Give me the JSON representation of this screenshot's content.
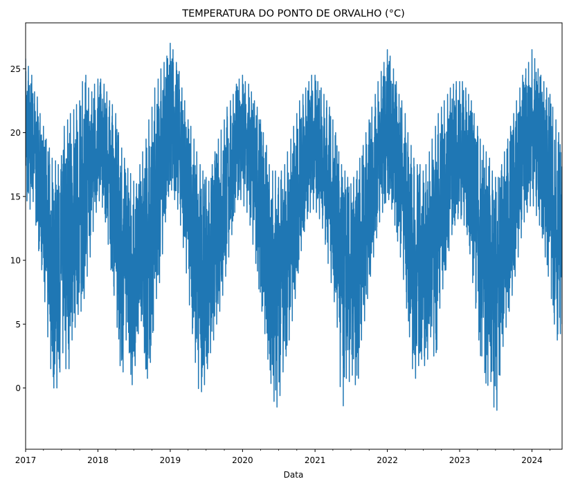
{
  "chart_data": {
    "type": "line",
    "title": "TEMPERATURA DO PONTO DE ORVALHO (°C)",
    "xlabel": "Data",
    "ylabel": "",
    "xlim": [
      "2017-01-01",
      "2024-06-01"
    ],
    "ylim": [
      -4.8,
      28.6
    ],
    "yticks": [
      0,
      5,
      10,
      15,
      20,
      25
    ],
    "xticks": [
      "2017",
      "2018",
      "2019",
      "2020",
      "2021",
      "2022",
      "2023",
      "2024"
    ],
    "grid": false,
    "legend": "none",
    "line_color": "#1f77b4",
    "series": [
      {
        "x": [
          "2017-01-01",
          "2017-01-15",
          "2017-02-01",
          "2017-02-15",
          "2017-03-01",
          "2017-03-15",
          "2017-04-01",
          "2017-04-15",
          "2017-05-01",
          "2017-05-15",
          "2017-06-01",
          "2017-06-15",
          "2017-07-01",
          "2017-07-15",
          "2017-08-01",
          "2017-08-15",
          "2017-09-01",
          "2017-09-15",
          "2017-10-01",
          "2017-10-15",
          "2017-11-01",
          "2017-11-15",
          "2017-12-01",
          "2017-12-15",
          "2018-01-01",
          "2018-01-15",
          "2018-02-01",
          "2018-02-15",
          "2018-03-01",
          "2018-03-15",
          "2018-04-01",
          "2018-04-15",
          "2018-05-01",
          "2018-05-15",
          "2018-06-01",
          "2018-06-15",
          "2018-07-01",
          "2018-07-15",
          "2018-08-01",
          "2018-08-15",
          "2018-09-01",
          "2018-09-15",
          "2018-10-01",
          "2018-10-15",
          "2018-11-01",
          "2018-11-15",
          "2018-12-01",
          "2018-12-15",
          "2019-01-01",
          "2019-01-15",
          "2019-02-01",
          "2019-02-15",
          "2019-03-01",
          "2019-03-15",
          "2019-04-01",
          "2019-04-15",
          "2019-05-01",
          "2019-05-15",
          "2019-06-01",
          "2019-06-15",
          "2019-07-01",
          "2019-07-15",
          "2019-08-01",
          "2019-08-15",
          "2019-09-01",
          "2019-09-15",
          "2019-10-01",
          "2019-10-15",
          "2019-11-01",
          "2019-11-15",
          "2019-12-01",
          "2019-12-15",
          "2020-01-01",
          "2020-01-15",
          "2020-02-01",
          "2020-02-15",
          "2020-03-01",
          "2020-03-15",
          "2020-04-01",
          "2020-04-15",
          "2020-05-01",
          "2020-05-15",
          "2020-06-01",
          "2020-06-15",
          "2020-07-01",
          "2020-07-15",
          "2020-08-01",
          "2020-08-15",
          "2020-09-01",
          "2020-09-15",
          "2020-10-01",
          "2020-10-15",
          "2020-11-01",
          "2020-11-15",
          "2020-12-01",
          "2020-12-15",
          "2021-01-01",
          "2021-01-15",
          "2021-02-01",
          "2021-02-15",
          "2021-03-01",
          "2021-03-15",
          "2021-04-01",
          "2021-04-15",
          "2021-05-01",
          "2021-05-15",
          "2021-06-01",
          "2021-06-15",
          "2021-07-01",
          "2021-07-15",
          "2021-08-01",
          "2021-08-15",
          "2021-09-01",
          "2021-09-15",
          "2021-10-01",
          "2021-10-15",
          "2021-11-01",
          "2021-11-15",
          "2021-12-01",
          "2021-12-15",
          "2022-01-01",
          "2022-01-15",
          "2022-02-01",
          "2022-02-15",
          "2022-03-01",
          "2022-03-15",
          "2022-04-01",
          "2022-04-15",
          "2022-05-01",
          "2022-05-15",
          "2022-06-01",
          "2022-06-15",
          "2022-07-01",
          "2022-07-15",
          "2022-08-01",
          "2022-08-15",
          "2022-09-01",
          "2022-09-15",
          "2022-10-01",
          "2022-10-15",
          "2022-11-01",
          "2022-11-15",
          "2022-12-01",
          "2022-12-15",
          "2023-01-01",
          "2023-01-15",
          "2023-02-01",
          "2023-02-15",
          "2023-03-01",
          "2023-03-15",
          "2023-04-01",
          "2023-04-15",
          "2023-05-01",
          "2023-05-15",
          "2023-06-01",
          "2023-06-15",
          "2023-07-01",
          "2023-07-15",
          "2023-08-01",
          "2023-08-15",
          "2023-09-01",
          "2023-09-15",
          "2023-10-01",
          "2023-10-15",
          "2023-11-01",
          "2023-11-15",
          "2023-12-01",
          "2023-12-15",
          "2024-01-01",
          "2024-01-15",
          "2024-02-01",
          "2024-02-15",
          "2024-03-01",
          "2024-03-15",
          "2024-04-01",
          "2024-04-15",
          "2024-05-01",
          "2024-05-15",
          "2024-06-01"
        ],
        "high": [
          25.8,
          25.2,
          24.5,
          23.2,
          22.8,
          21.5,
          20.5,
          19.5,
          18.8,
          18.0,
          17.8,
          17.5,
          18.2,
          20.5,
          21.0,
          21.5,
          21.8,
          22.2,
          22.5,
          24.0,
          24.5,
          23.5,
          23.2,
          23.8,
          24.2,
          24.2,
          23.8,
          23.2,
          22.5,
          22.2,
          21.5,
          20.0,
          18.8,
          18.0,
          17.2,
          16.8,
          16.2,
          16.0,
          17.5,
          18.5,
          19.5,
          21.0,
          22.0,
          23.5,
          24.2,
          25.0,
          25.5,
          26.0,
          27.0,
          26.5,
          25.5,
          24.8,
          23.5,
          22.5,
          21.0,
          20.5,
          19.5,
          18.5,
          17.5,
          17.0,
          16.5,
          16.2,
          17.5,
          18.5,
          19.5,
          20.2,
          21.0,
          22.0,
          22.5,
          23.0,
          23.8,
          24.2,
          24.5,
          24.0,
          23.8,
          23.2,
          22.5,
          22.0,
          21.0,
          20.0,
          19.0,
          17.5,
          17.0,
          17.0,
          16.5,
          17.0,
          17.5,
          18.5,
          19.5,
          20.5,
          21.5,
          22.5,
          23.0,
          23.5,
          24.0,
          24.5,
          24.5,
          24.0,
          23.5,
          23.0,
          22.5,
          22.0,
          21.0,
          20.0,
          18.5,
          17.5,
          17.0,
          16.5,
          16.0,
          16.5,
          17.0,
          18.0,
          19.0,
          20.0,
          21.0,
          22.0,
          23.0,
          24.0,
          24.8,
          25.5,
          26.5,
          26.0,
          25.0,
          24.0,
          23.0,
          22.5,
          21.5,
          20.0,
          19.0,
          18.0,
          17.5,
          17.5,
          17.0,
          17.5,
          18.5,
          19.5,
          20.5,
          21.5,
          22.0,
          22.5,
          23.0,
          23.5,
          23.8,
          24.0,
          24.0,
          24.0,
          23.5,
          23.0,
          22.5,
          21.5,
          20.5,
          19.5,
          19.0,
          18.5,
          18.0,
          17.0,
          16.5,
          16.5,
          17.5,
          18.5,
          19.5,
          20.5,
          21.5,
          22.5,
          23.5,
          24.5,
          25.0,
          25.5,
          26.5,
          25.8,
          25.0,
          24.5,
          24.0,
          23.5,
          23.0,
          22.0,
          21.0,
          20.0,
          19.5
        ],
        "low": [
          16.5,
          12.8,
          15.2,
          14.0,
          11.5,
          10.0,
          8.5,
          5.0,
          3.0,
          0.0,
          0.0,
          0.0,
          2.5,
          3.0,
          0.0,
          3.0,
          4.5,
          5.0,
          6.5,
          5.5,
          8.5,
          9.0,
          11.5,
          13.0,
          14.5,
          14.8,
          13.5,
          12.5,
          10.0,
          8.5,
          6.0,
          3.5,
          0.0,
          2.5,
          5.0,
          0.5,
          0.0,
          3.5,
          5.0,
          5.5,
          0.0,
          1.5,
          2.5,
          6.5,
          7.5,
          9.0,
          12.0,
          14.0,
          16.0,
          15.0,
          14.5,
          13.5,
          12.0,
          10.0,
          8.0,
          5.0,
          3.5,
          0.5,
          -0.6,
          0.0,
          0.5,
          2.5,
          3.0,
          4.5,
          5.5,
          6.5,
          8.0,
          9.5,
          11.0,
          13.0,
          14.5,
          15.0,
          14.5,
          14.0,
          13.5,
          12.0,
          10.5,
          9.0,
          6.5,
          5.5,
          3.0,
          1.5,
          -0.8,
          -1.3,
          -1.7,
          0.5,
          2.0,
          3.0,
          4.5,
          6.0,
          8.0,
          10.0,
          11.5,
          13.0,
          13.5,
          14.0,
          14.0,
          13.5,
          13.0,
          12.0,
          10.5,
          9.0,
          7.5,
          6.0,
          3.5,
          -3.3,
          0.5,
          1.0,
          0.0,
          2.0,
          -1.5,
          3.0,
          4.5,
          6.0,
          8.0,
          9.5,
          11.0,
          12.5,
          13.5,
          14.0,
          15.0,
          14.5,
          13.5,
          12.0,
          11.0,
          9.5,
          7.5,
          5.0,
          3.0,
          0.0,
          1.5,
          2.0,
          2.5,
          1.0,
          3.5,
          4.5,
          0.5,
          5.5,
          7.0,
          8.5,
          10.0,
          11.5,
          12.5,
          13.0,
          13.5,
          13.0,
          12.5,
          11.5,
          9.5,
          7.0,
          5.5,
          2.0,
          3.0,
          -0.6,
          1.0,
          0.0,
          -3.0,
          -0.5,
          2.5,
          4.0,
          5.5,
          6.5,
          8.0,
          9.5,
          11.0,
          12.5,
          13.5,
          14.0,
          14.5,
          14.0,
          13.0,
          12.5,
          11.0,
          9.5,
          8.0,
          6.0,
          4.0,
          3.5,
          5.0
        ]
      }
    ]
  }
}
